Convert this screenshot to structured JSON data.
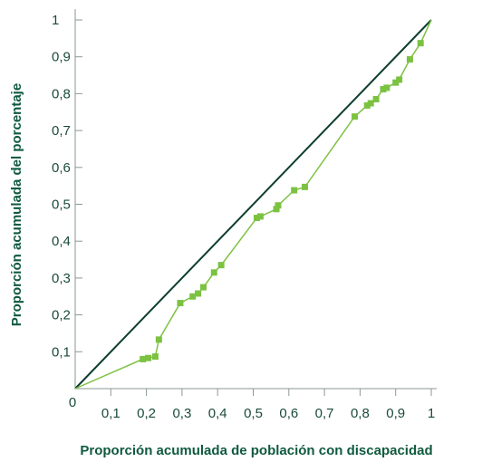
{
  "chart_data": {
    "type": "line",
    "xlabel": "Proporción acumulada de población con discapacidad",
    "ylabel": "Proporción acumulada del porcentaje",
    "xlim": [
      0,
      1
    ],
    "ylim": [
      0,
      1
    ],
    "x_ticks": [
      "0,1",
      "0,2",
      "0,3",
      "0,4",
      "0,5",
      "0,6",
      "0,7",
      "0,8",
      "0,9",
      "1"
    ],
    "y_ticks": [
      "0,1",
      "0,2",
      "0,3",
      "0,4",
      "0,5",
      "0,6",
      "0,7",
      "0,8",
      "0,9",
      "1"
    ],
    "origin_label": "0",
    "grid": false,
    "colors": {
      "equality_line": "#0d3d2f",
      "curve": "#7cc242",
      "axis": "#8a9a92"
    },
    "series": [
      {
        "line_style": "diagonal",
        "x": [
          0,
          1
        ],
        "y": [
          0,
          1
        ]
      },
      {
        "line_style": "curve-with-square-markers",
        "x": [
          0,
          0.19,
          0.205,
          0.225,
          0.235,
          0.295,
          0.33,
          0.345,
          0.36,
          0.39,
          0.41,
          0.51,
          0.52,
          0.565,
          0.57,
          0.615,
          0.645,
          0.785,
          0.82,
          0.83,
          0.845,
          0.865,
          0.875,
          0.9,
          0.91,
          0.94,
          0.97,
          1
        ],
        "y": [
          0,
          0.08,
          0.083,
          0.087,
          0.133,
          0.232,
          0.25,
          0.258,
          0.275,
          0.315,
          0.335,
          0.463,
          0.467,
          0.487,
          0.497,
          0.538,
          0.547,
          0.738,
          0.768,
          0.774,
          0.785,
          0.812,
          0.816,
          0.83,
          0.838,
          0.893,
          0.937,
          1
        ],
        "markers_from_index": 1,
        "markers_to_index": 26
      }
    ]
  }
}
